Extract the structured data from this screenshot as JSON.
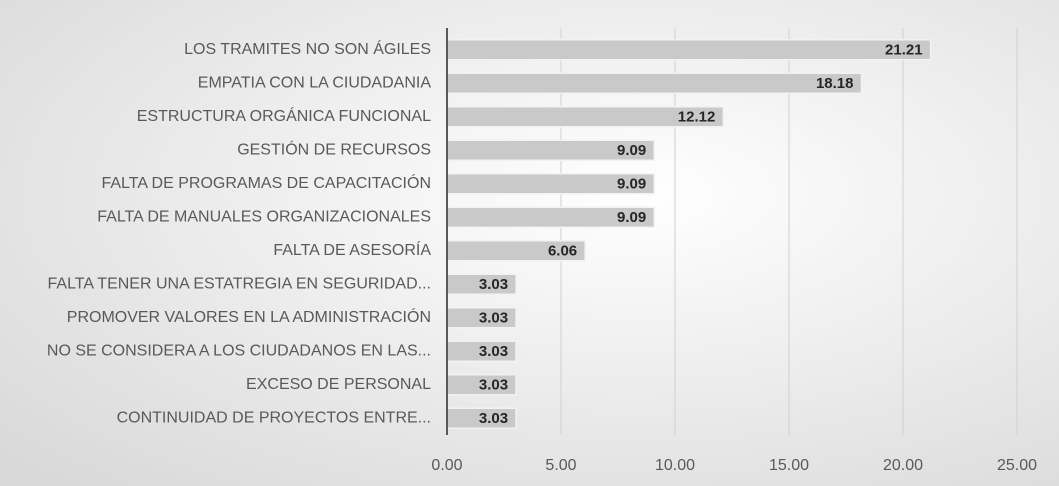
{
  "chart_data": {
    "type": "bar",
    "orientation": "horizontal",
    "categories": [
      "LOS TRAMITES NO SON ÁGILES",
      "EMPATIA CON LA CIUDADANIA",
      "ESTRUCTURA ORGÁNICA FUNCIONAL",
      "GESTIÓN DE RECURSOS",
      "FALTA DE PROGRAMAS DE CAPACITACIÓN",
      "FALTA DE MANUALES ORGANIZACIONALES",
      "FALTA DE ASESORÍA",
      "FALTA TENER UNA ESTATREGIA EN SEGURIDAD...",
      "PROMOVER VALORES EN LA ADMINISTRACIÓN",
      "NO SE CONSIDERA A LOS CIUDADANOS EN LAS...",
      "EXCESO DE PERSONAL",
      "CONTINUIDAD DE PROYECTOS ENTRE..."
    ],
    "values": [
      21.21,
      18.18,
      12.12,
      9.09,
      9.09,
      9.09,
      6.06,
      3.03,
      3.03,
      3.03,
      3.03,
      3.03
    ],
    "color": "#c9c9c9",
    "xlim": [
      0,
      25
    ],
    "xticks": [
      {
        "value": 0,
        "label": "0.00"
      },
      {
        "value": 5,
        "label": "5.00"
      },
      {
        "value": 10,
        "label": "10.00"
      },
      {
        "value": 15,
        "label": "15.00"
      },
      {
        "value": 20,
        "label": "20.00"
      },
      {
        "value": 25,
        "label": "25.00"
      }
    ],
    "grid": true
  }
}
